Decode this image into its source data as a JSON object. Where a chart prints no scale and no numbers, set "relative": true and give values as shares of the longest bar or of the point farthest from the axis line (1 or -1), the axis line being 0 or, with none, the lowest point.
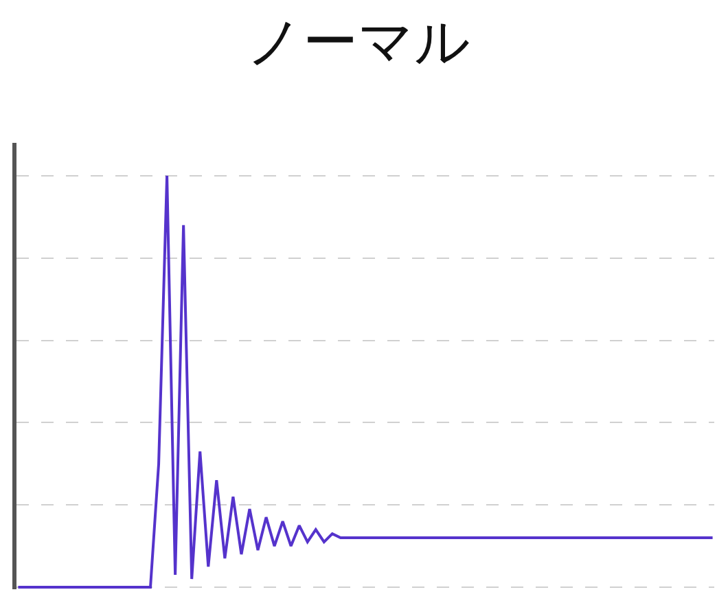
{
  "chart_data": {
    "type": "line",
    "title": "ノーマル",
    "relative": true,
    "grid": true,
    "marker": "none",
    "line_style": "solid",
    "categories": [
      null,
      null,
      null,
      null,
      null,
      null,
      null,
      null,
      null,
      null,
      null,
      null,
      null,
      null,
      null,
      null,
      null,
      null,
      null,
      null,
      null,
      null,
      null,
      null,
      null,
      null,
      null,
      null,
      null,
      null,
      null,
      null,
      null,
      null,
      null,
      null,
      null,
      null,
      null,
      null,
      null,
      null,
      null,
      null,
      null,
      null,
      null,
      null,
      null,
      null,
      null,
      null,
      null,
      null,
      null,
      null,
      null,
      null,
      null,
      null,
      null,
      null,
      null,
      null,
      null,
      null,
      null,
      null,
      null,
      null,
      null,
      null,
      null,
      null,
      null,
      null,
      null,
      null,
      null,
      null,
      null,
      null,
      null,
      null,
      null
    ],
    "series": [
      {
        "color": "#5533cc",
        "values": [
          0,
          0,
          0,
          0,
          0,
          0,
          0,
          0,
          0,
          0,
          0,
          0,
          0,
          0,
          0,
          0,
          0,
          0.3,
          1.0,
          0.03,
          0.88,
          0.02,
          0.33,
          0.05,
          0.26,
          0.07,
          0.22,
          0.08,
          0.19,
          0.09,
          0.17,
          0.1,
          0.16,
          0.1,
          0.15,
          0.11,
          0.14,
          0.11,
          0.13,
          0.12,
          0.12,
          0.12,
          0.12,
          0.12,
          0.12,
          0.12,
          0.12,
          0.12,
          0.12,
          0.12,
          0.12,
          0.12,
          0.12,
          0.12,
          0.12,
          0.12,
          0.12,
          0.12,
          0.12,
          0.12,
          0.12,
          0.12,
          0.12,
          0.12,
          0.12,
          0.12,
          0.12,
          0.12,
          0.12,
          0.12,
          0.12,
          0.12,
          0.12,
          0.12,
          0.12,
          0.12,
          0.12,
          0.12,
          0.12,
          0.12,
          0.12,
          0.12,
          0.12,
          0.12,
          0.12
        ]
      }
    ]
  }
}
